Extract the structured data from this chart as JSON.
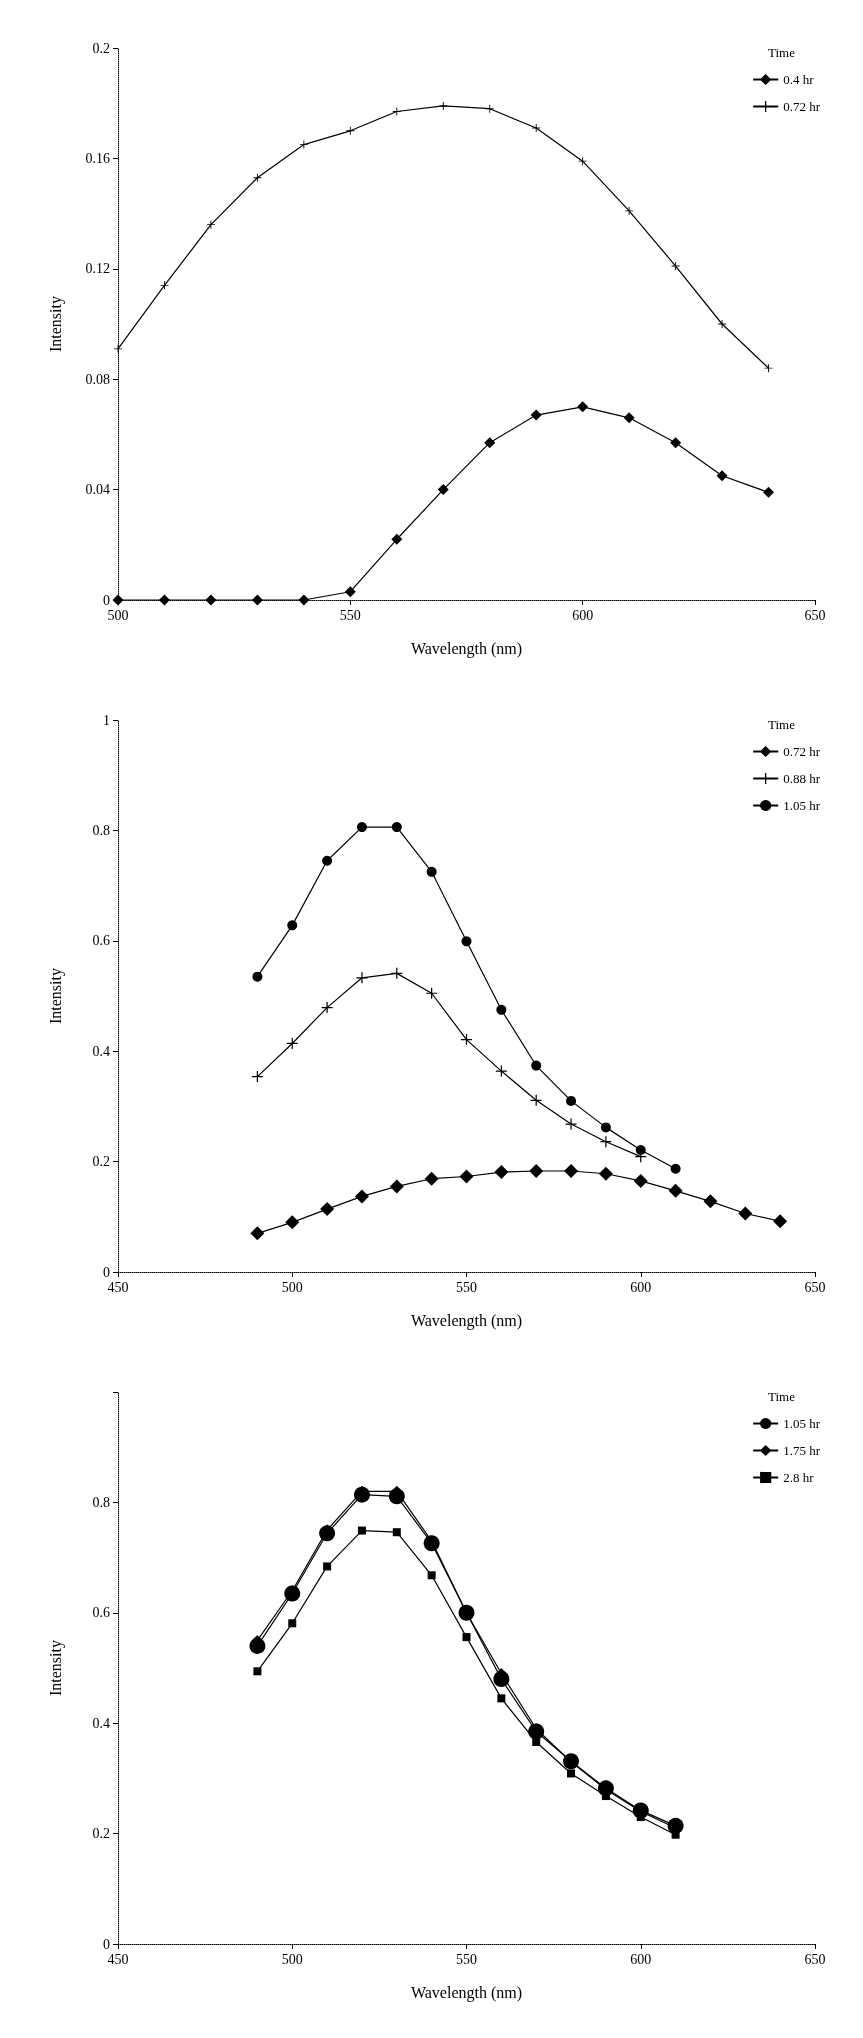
{
  "chart_data": [
    {
      "type": "line",
      "xlabel": "Wavelength (nm)",
      "ylabel": "Intensity",
      "legend_title": "Time",
      "legend": "top right",
      "grid": false,
      "xlim": [
        500,
        650
      ],
      "xticks": [
        500,
        550,
        600,
        650
      ],
      "ylim": [
        0,
        0.2
      ],
      "yticks": [
        0,
        0.04,
        0.08,
        0.12,
        0.16,
        0.2
      ],
      "x": [
        500,
        510,
        520,
        530,
        540,
        550,
        560,
        570,
        580,
        590,
        600,
        610,
        620,
        630,
        640
      ],
      "series": [
        {
          "name": "0.4 hr",
          "color": "#000000",
          "marker": "diamond",
          "values": [
            0,
            0,
            0,
            0,
            0,
            0.003,
            0.022,
            0.04,
            0.057,
            0.067,
            0.07,
            0.066,
            0.057,
            0.045,
            0.039
          ]
        },
        {
          "name": "0.72 hr",
          "color": "#000000",
          "marker": "cross",
          "values": [
            0.091,
            0.114,
            0.136,
            0.153,
            0.165,
            0.17,
            0.177,
            0.179,
            0.178,
            0.171,
            0.159,
            0.141,
            0.121,
            0.1,
            0.084
          ]
        }
      ]
    },
    {
      "type": "line",
      "xlabel": "Wavelength (nm)",
      "ylabel": "Intensity",
      "legend_title": "Time",
      "legend": "top right",
      "grid": false,
      "xlim": [
        450,
        650
      ],
      "xticks": [
        450,
        500,
        550,
        600,
        650
      ],
      "ylim": [
        0,
        1
      ],
      "yticks": [
        0,
        0.2,
        0.4,
        0.6,
        0.8,
        1
      ],
      "x": [
        490,
        500,
        510,
        520,
        530,
        540,
        550,
        560,
        570,
        580,
        590,
        600,
        610,
        620,
        630,
        640
      ],
      "series": [
        {
          "name": "0.72 hr",
          "color": "#000000",
          "marker": "diamond",
          "values": [
            0.07,
            0.09,
            0.114,
            0.137,
            0.155,
            0.169,
            0.173,
            0.181,
            0.183,
            0.183,
            0.178,
            0.165,
            0.147,
            0.128,
            0.106,
            0.092
          ]
        },
        {
          "name": "0.88 hr",
          "color": "#000000",
          "marker": "cross",
          "values": [
            0.354,
            0.414,
            0.479,
            0.533,
            0.541,
            0.505,
            0.421,
            0.364,
            0.311,
            0.268,
            0.236,
            0.209,
            null,
            null,
            null,
            null
          ]
        },
        {
          "name": "1.05 hr",
          "color": "#000000",
          "marker": "circle",
          "values": [
            0.535,
            0.628,
            0.745,
            0.806,
            0.806,
            0.725,
            0.599,
            0.475,
            0.374,
            0.31,
            0.262,
            0.221,
            0.187,
            null,
            null,
            null
          ]
        }
      ]
    },
    {
      "type": "line",
      "xlabel": "Wavelength (nm)",
      "ylabel": "Intensity",
      "legend_title": "Time",
      "legend": "top right",
      "grid": false,
      "xlim": [
        450,
        650
      ],
      "xticks": [
        450,
        500,
        550,
        600,
        650
      ],
      "ylim": [
        0,
        1
      ],
      "yticks": [
        0,
        0.2,
        0.4,
        0.6,
        0.8,
        {
          "value": 1,
          "label": null
        }
      ],
      "x": [
        490,
        500,
        510,
        520,
        530,
        540,
        550,
        560,
        570,
        580,
        590,
        600,
        610
      ],
      "series": [
        {
          "name": "1.05 hr",
          "color": "#000000",
          "marker": "circle",
          "values": [
            0.54,
            0.635,
            0.744,
            0.814,
            0.811,
            0.726,
            0.6,
            0.48,
            0.385,
            0.331,
            0.282,
            0.242,
            0.214
          ]
        },
        {
          "name": "1.75 hr",
          "color": "#000000",
          "marker": "diamond",
          "values": [
            0.55,
            0.64,
            0.75,
            0.82,
            0.82,
            0.73,
            0.6,
            0.49,
            0.39,
            0.33,
            0.28,
            0.24,
            0.21
          ]
        },
        {
          "name": "2.8 hr",
          "color": "#000000",
          "marker": "square",
          "values": [
            0.494,
            0.581,
            0.684,
            0.749,
            0.746,
            0.668,
            0.556,
            0.445,
            0.366,
            0.309,
            0.268,
            0.23,
            0.198
          ]
        }
      ]
    }
  ]
}
